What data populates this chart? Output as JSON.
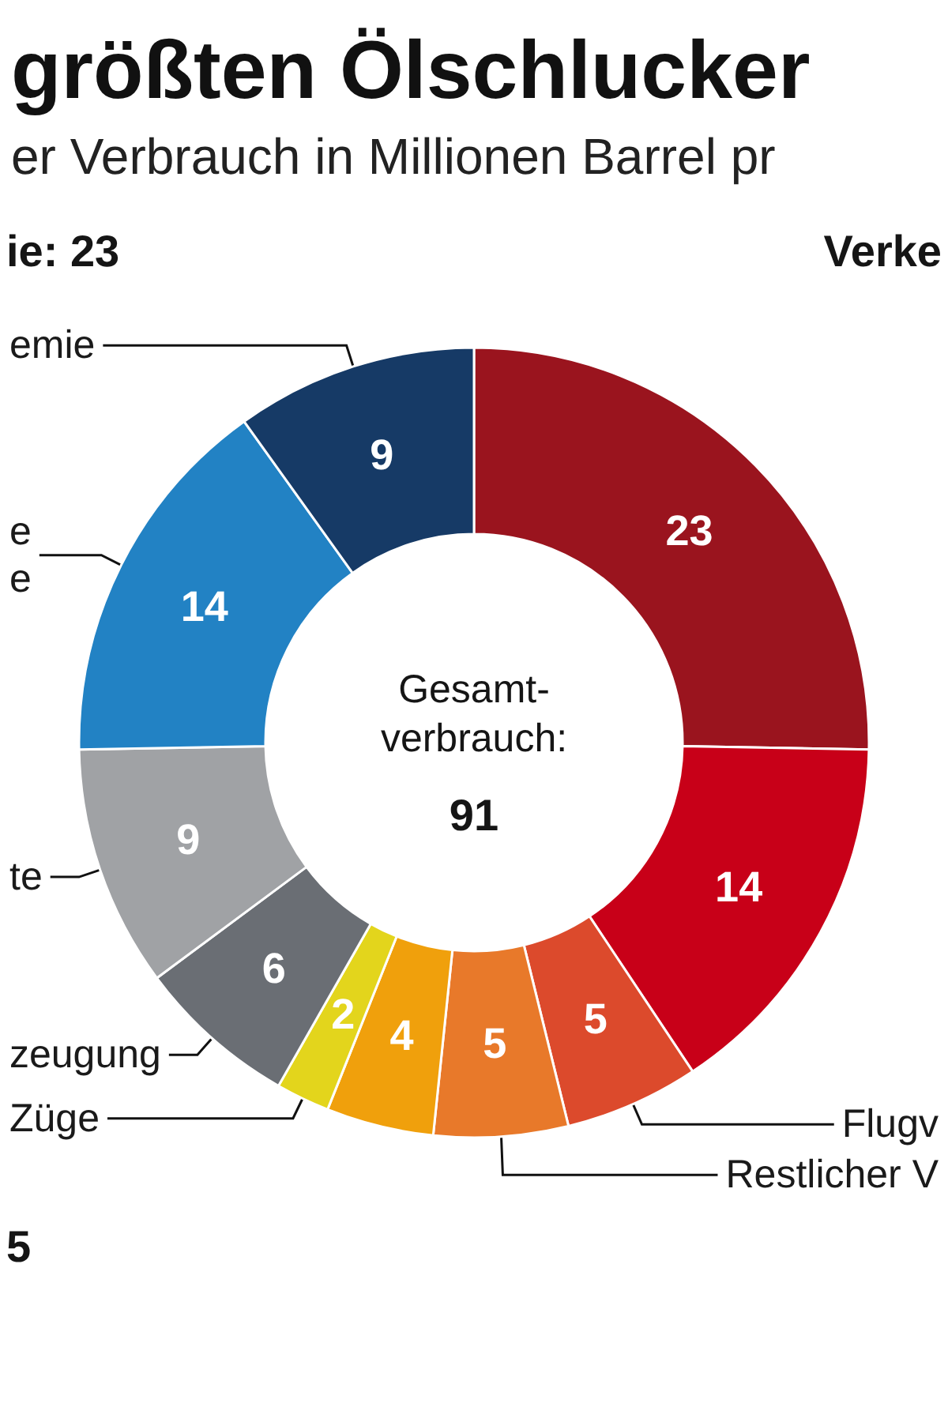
{
  "chart_data": {
    "type": "donut",
    "title": "größten Ölschlucker",
    "subtitle": "er Verbrauch in Millionen Barrel pr",
    "categories": [
      null,
      null,
      "Flugv",
      "Restlicher V",
      null,
      "Züge",
      "zeugung",
      "te",
      "e\ne",
      "emie"
    ],
    "values": [
      23,
      14,
      5,
      5,
      4,
      2,
      6,
      9,
      14,
      9
    ],
    "colors": [
      "#9a141e",
      "#c80018",
      "#dc4a2c",
      "#e8792a",
      "#f0a00c",
      "#e3d51c",
      "#6a6e74",
      "#a0a2a5",
      "#2282c4",
      "#163a66"
    ],
    "data_labels": true,
    "annotations": [
      "ie: 23",
      "Verke",
      "5",
      "Gesamt-\nverbrauch:",
      "91"
    ]
  }
}
